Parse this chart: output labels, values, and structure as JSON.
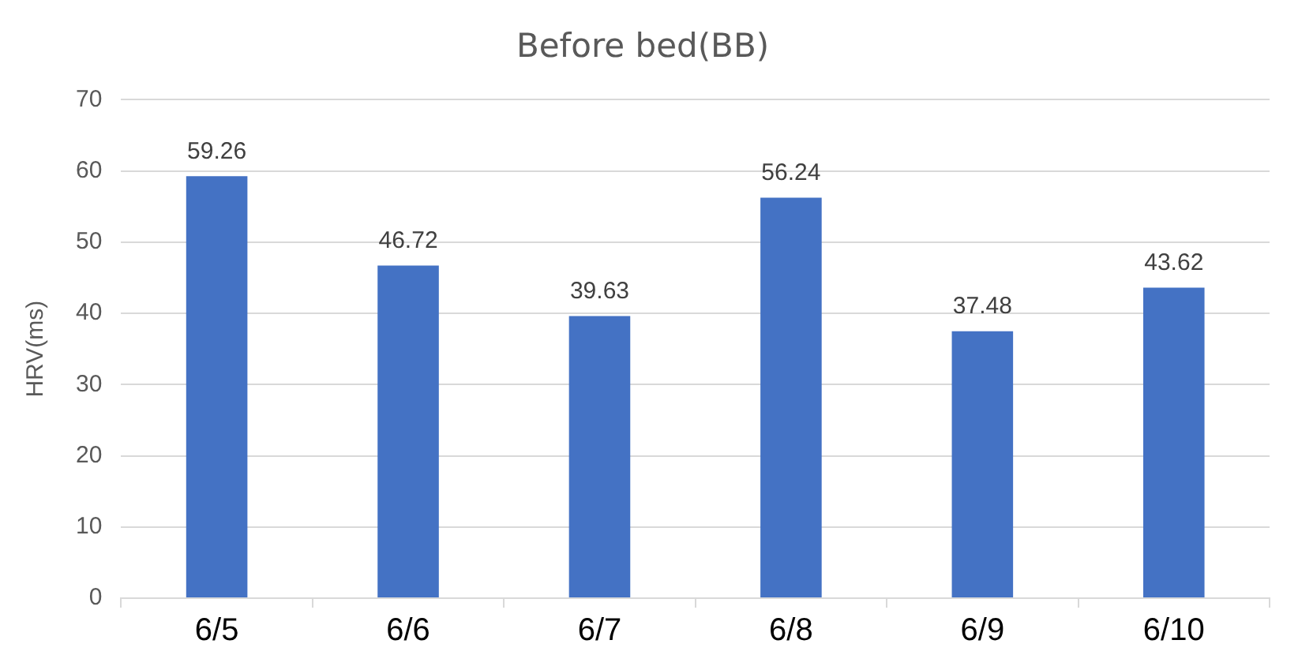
{
  "chart_data": {
    "type": "bar",
    "title": "Before bed(BB)",
    "ylabel": "HRV(ms)",
    "categories": [
      "6/5",
      "6/6",
      "6/7",
      "6/8",
      "6/9",
      "6/10"
    ],
    "values": [
      59.26,
      46.72,
      39.63,
      56.24,
      37.48,
      43.62
    ],
    "color": "#4472c4",
    "ylim": [
      0,
      70
    ],
    "yticks": [
      0,
      10,
      20,
      30,
      40,
      50,
      60,
      70
    ],
    "grid": "y",
    "data_labels": true
  }
}
